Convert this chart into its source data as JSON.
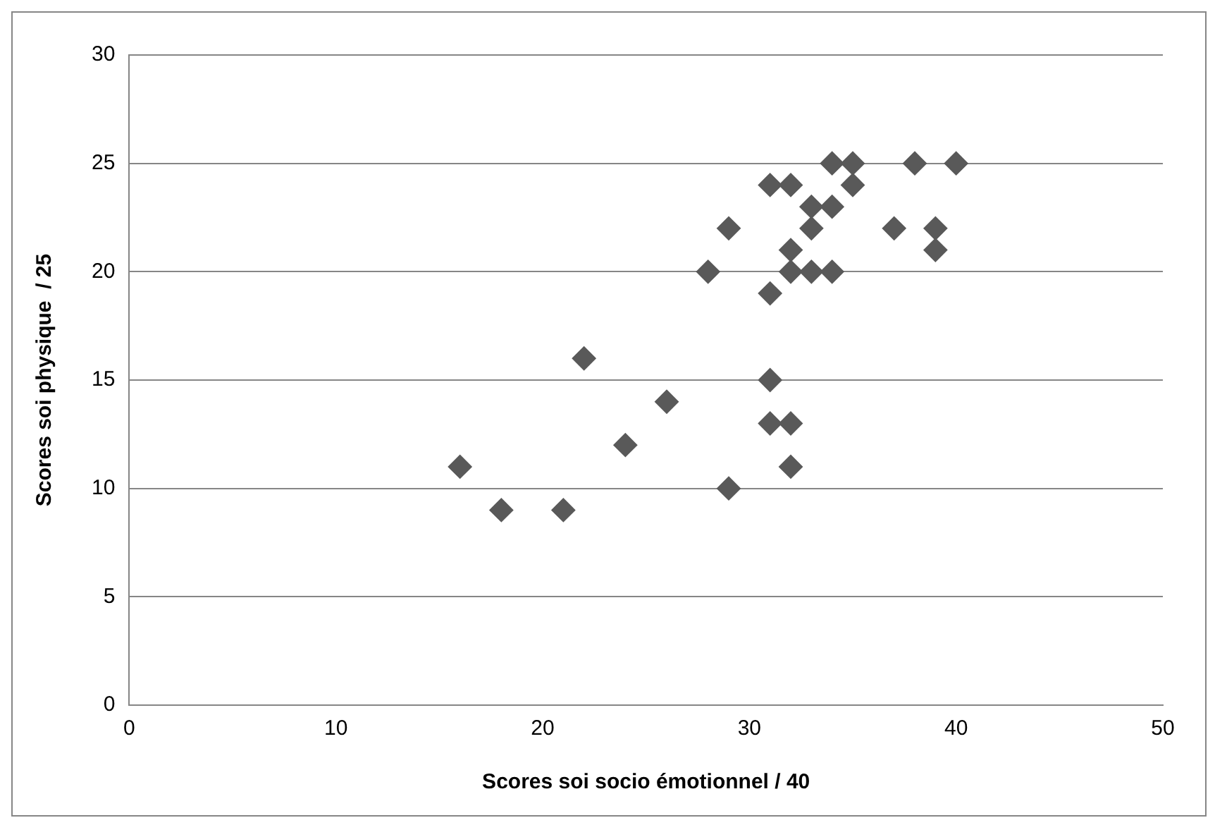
{
  "chart_data": {
    "type": "scatter",
    "xlabel": "Scores soi socio émotionnel / 40",
    "ylabel": "Scores soi physique  / 25",
    "x": [
      16,
      18,
      21,
      22,
      24,
      26,
      29,
      28,
      29,
      31,
      32,
      31,
      31,
      31,
      32,
      32,
      32,
      32,
      33,
      33,
      33,
      34,
      34,
      35,
      34,
      35,
      37,
      38,
      39,
      39,
      40
    ],
    "values": [
      11,
      9,
      9,
      16,
      12,
      14,
      10,
      20,
      22,
      24,
      24,
      19,
      15,
      13,
      13,
      11,
      21,
      20,
      23,
      22,
      20,
      20,
      25,
      25,
      23,
      24,
      22,
      25,
      22,
      21,
      25
    ],
    "color": "#595959",
    "marker": "diamond",
    "xlim": [
      0,
      50
    ],
    "xticks": [
      0,
      10,
      20,
      30,
      40,
      50
    ],
    "ylim": [
      0,
      30
    ],
    "yticks": [
      0,
      5,
      10,
      15,
      20,
      25,
      30
    ],
    "grid": "y",
    "legend": false
  }
}
